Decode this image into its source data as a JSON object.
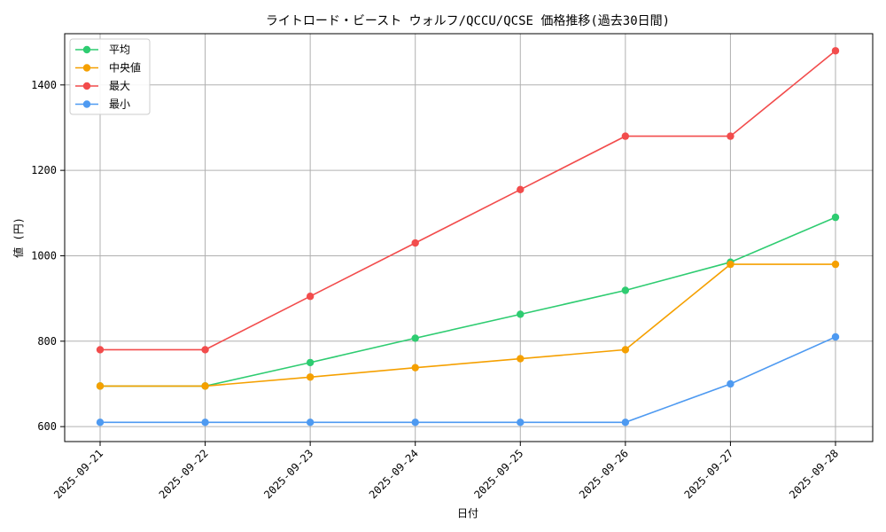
{
  "chart_data": {
    "type": "line",
    "title": "ライトロード・ビースト ウォルフ/QCCU/QCSE 価格推移(過去30日間)",
    "xlabel": "日付",
    "ylabel": "値 (円)",
    "categories": [
      "2025-09-21",
      "2025-09-22",
      "2025-09-23",
      "2025-09-24",
      "2025-09-25",
      "2025-09-26",
      "2025-09-27",
      "2025-09-28"
    ],
    "ylim": [
      565,
      1520
    ],
    "yticks": [
      600,
      800,
      1000,
      1200,
      1400
    ],
    "grid": true,
    "legend_position": "top-left",
    "series": [
      {
        "name": "平均",
        "color": "#2ecc71",
        "values": [
          695,
          695,
          750,
          807,
          863,
          919,
          985,
          1090
        ]
      },
      {
        "name": "中央値",
        "color": "#f5a000",
        "values": [
          695,
          695,
          716,
          738,
          759,
          780,
          980,
          980
        ]
      },
      {
        "name": "最大",
        "color": "#f24c4c",
        "values": [
          780,
          780,
          905,
          1030,
          1155,
          1280,
          1280,
          1480
        ]
      },
      {
        "name": "最小",
        "color": "#4e9af1",
        "values": [
          610,
          610,
          610,
          610,
          610,
          610,
          700,
          810
        ]
      }
    ]
  }
}
